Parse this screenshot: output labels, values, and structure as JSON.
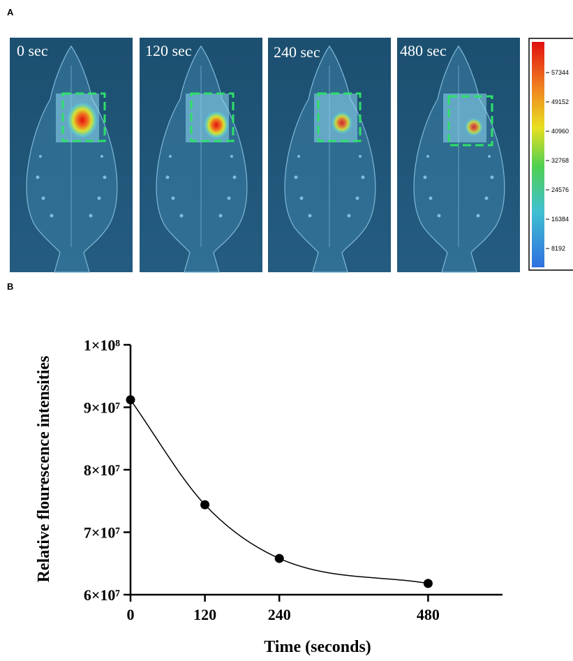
{
  "panel_a": {
    "panel_label": "A",
    "frame_labels": [
      "0 sec",
      "120 sec",
      "240 sec",
      "480 sec"
    ],
    "colorbar_ticks": [
      57344,
      49152,
      40960,
      32768,
      24576,
      16384,
      8192
    ]
  },
  "chart_data": {
    "type": "line",
    "panel_label": "B",
    "x_label": "Time (seconds)",
    "y_label": "Relative flourescence intensities",
    "x": [
      0,
      120,
      240,
      480
    ],
    "series": [
      {
        "color": "#000000",
        "values": [
          91200000,
          74400000,
          65800000,
          61800000
        ]
      }
    ],
    "xlim": [
      0,
      600
    ],
    "xticks": [
      0,
      120,
      240,
      480
    ],
    "ylim": [
      60000000,
      100000000
    ],
    "yticks": [
      {
        "value": 60000000,
        "label": "6×10⁷"
      },
      {
        "value": 70000000,
        "label": "7×10⁷"
      },
      {
        "value": 80000000,
        "label": "8×10⁷"
      },
      {
        "value": 90000000,
        "label": "9×10⁷"
      },
      {
        "value": 100000000,
        "label": "1×10⁸"
      }
    ]
  }
}
